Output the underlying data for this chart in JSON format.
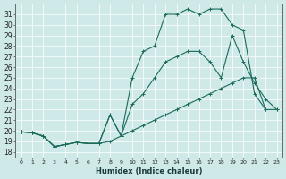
{
  "xlabel": "Humidex (Indice chaleur)",
  "background_color": "#cfe9e9",
  "line_color": "#1a6b5a",
  "grid_color": "#b8d8d8",
  "xlim": [
    -0.5,
    23.5
  ],
  "ylim": [
    17.5,
    32.0
  ],
  "yticks": [
    18,
    19,
    20,
    21,
    22,
    23,
    24,
    25,
    26,
    27,
    28,
    29,
    30,
    31
  ],
  "xticks": [
    0,
    1,
    2,
    3,
    4,
    5,
    6,
    7,
    8,
    9,
    10,
    11,
    12,
    13,
    14,
    15,
    16,
    17,
    18,
    19,
    20,
    21,
    22,
    23
  ],
  "series1_x": [
    0,
    1,
    2,
    3,
    4,
    5,
    6,
    7,
    8,
    9,
    10,
    11,
    12,
    13,
    14,
    15,
    16,
    17,
    18,
    19,
    20,
    21,
    22,
    23
  ],
  "series1_y": [
    19.9,
    19.8,
    19.5,
    18.5,
    18.7,
    18.9,
    18.8,
    18.8,
    19.0,
    19.5,
    20.0,
    20.5,
    21.0,
    21.5,
    22.0,
    22.5,
    23.0,
    23.5,
    24.0,
    24.5,
    25.0,
    25.0,
    22.0,
    22.0
  ],
  "series2_x": [
    0,
    1,
    2,
    3,
    4,
    5,
    6,
    7,
    8,
    9,
    10,
    11,
    12,
    13,
    14,
    15,
    16,
    17,
    18,
    19,
    20,
    21,
    22,
    23
  ],
  "series2_y": [
    19.9,
    19.8,
    19.5,
    18.5,
    18.7,
    18.9,
    18.8,
    18.8,
    21.5,
    19.5,
    22.5,
    23.5,
    25.0,
    26.5,
    27.0,
    27.5,
    27.5,
    26.5,
    25.0,
    29.0,
    26.5,
    24.5,
    23.0,
    22.0
  ],
  "series3_x": [
    0,
    1,
    2,
    3,
    4,
    5,
    6,
    7,
    8,
    9,
    10,
    11,
    12,
    13,
    14,
    15,
    16,
    17,
    18,
    19,
    20,
    21,
    22,
    23
  ],
  "series3_y": [
    19.9,
    19.8,
    19.5,
    18.5,
    18.7,
    18.9,
    18.8,
    18.8,
    21.5,
    19.5,
    25.0,
    27.5,
    28.0,
    31.0,
    31.0,
    31.5,
    31.0,
    31.5,
    31.5,
    30.0,
    29.5,
    23.5,
    22.0,
    null
  ]
}
